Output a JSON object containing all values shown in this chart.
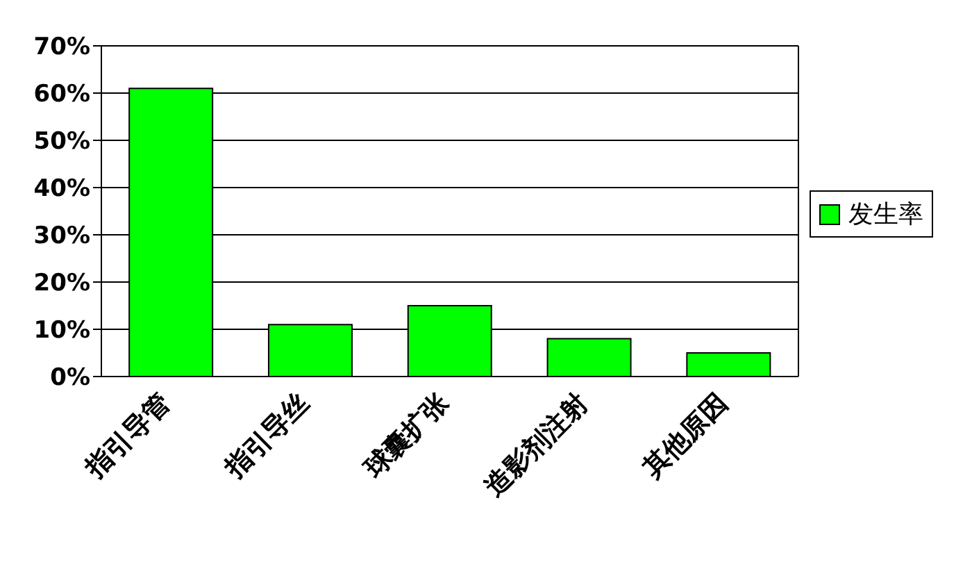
{
  "chart_data": {
    "type": "bar",
    "categories": [
      "指引导管",
      "指引导丝",
      "球囊扩张",
      "造影剂注射",
      "其他原因"
    ],
    "series": [
      {
        "name": "发生率",
        "color": "#00ff00",
        "values": [
          61,
          11,
          15,
          8,
          5
        ]
      }
    ],
    "ylim": [
      0,
      70
    ],
    "yticks": [
      {
        "value": 0,
        "label": "0%"
      },
      {
        "value": 10,
        "label": "10%"
      },
      {
        "value": 20,
        "label": "20%"
      },
      {
        "value": 30,
        "label": "30%"
      },
      {
        "value": 40,
        "label": "40%"
      },
      {
        "value": 50,
        "label": "50%"
      },
      {
        "value": 60,
        "label": "60%"
      },
      {
        "value": 70,
        "label": "70%"
      }
    ],
    "grid": "y",
    "legend": "right"
  }
}
